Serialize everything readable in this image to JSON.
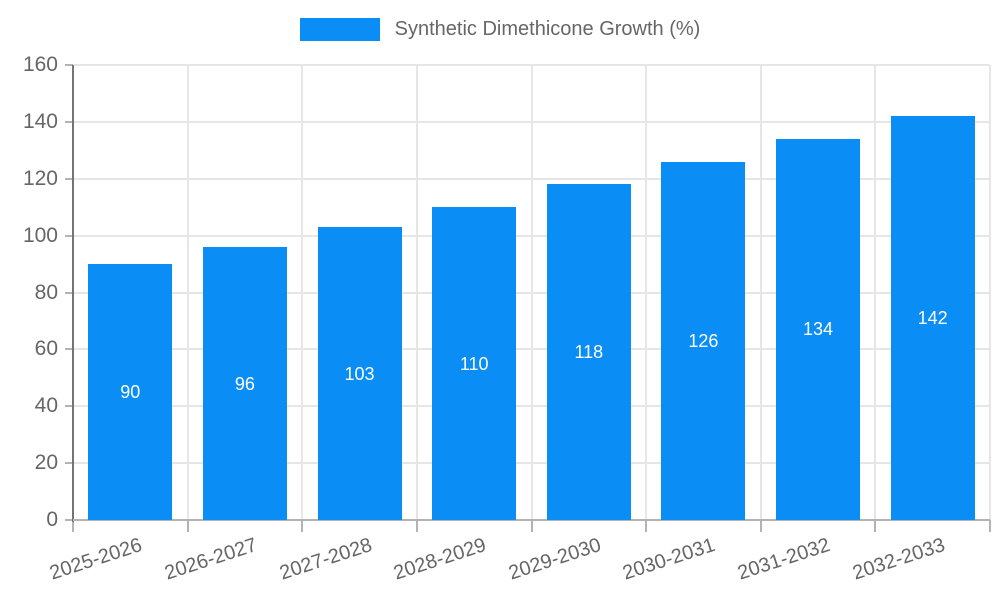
{
  "legend": {
    "series_label": "Synthetic Dimethicone Growth (%)"
  },
  "chart_data": {
    "type": "bar",
    "title": "Synthetic Dimethicone Growth (%)",
    "categories": [
      "2025-2026",
      "2026-2027",
      "2027-2028",
      "2028-2029",
      "2029-2030",
      "2030-2031",
      "2031-2032",
      "2032-2033"
    ],
    "values": [
      90,
      96,
      103,
      110,
      118,
      126,
      134,
      142
    ],
    "bar_value_labels": [
      "90",
      "96",
      "103",
      "110",
      "118",
      "126",
      "134",
      "142"
    ],
    "xlabel": "",
    "ylabel": "",
    "ylim": [
      0,
      160
    ],
    "yticks": [
      0,
      20,
      40,
      60,
      80,
      100,
      120,
      140,
      160
    ],
    "ytick_labels": [
      "0",
      "20",
      "40",
      "60",
      "80",
      "100",
      "120",
      "140",
      "160"
    ],
    "grid": true,
    "legend_position": "top",
    "colors": {
      "bar": "#0a8ef6",
      "bar_label": "#ffffff",
      "axis_text": "#666666",
      "gridline": "#e6e6e6",
      "axis_line": "#757575",
      "baseline": "#b3b3b3",
      "tick": "#b3b3b3",
      "background": "#ffffff"
    }
  }
}
